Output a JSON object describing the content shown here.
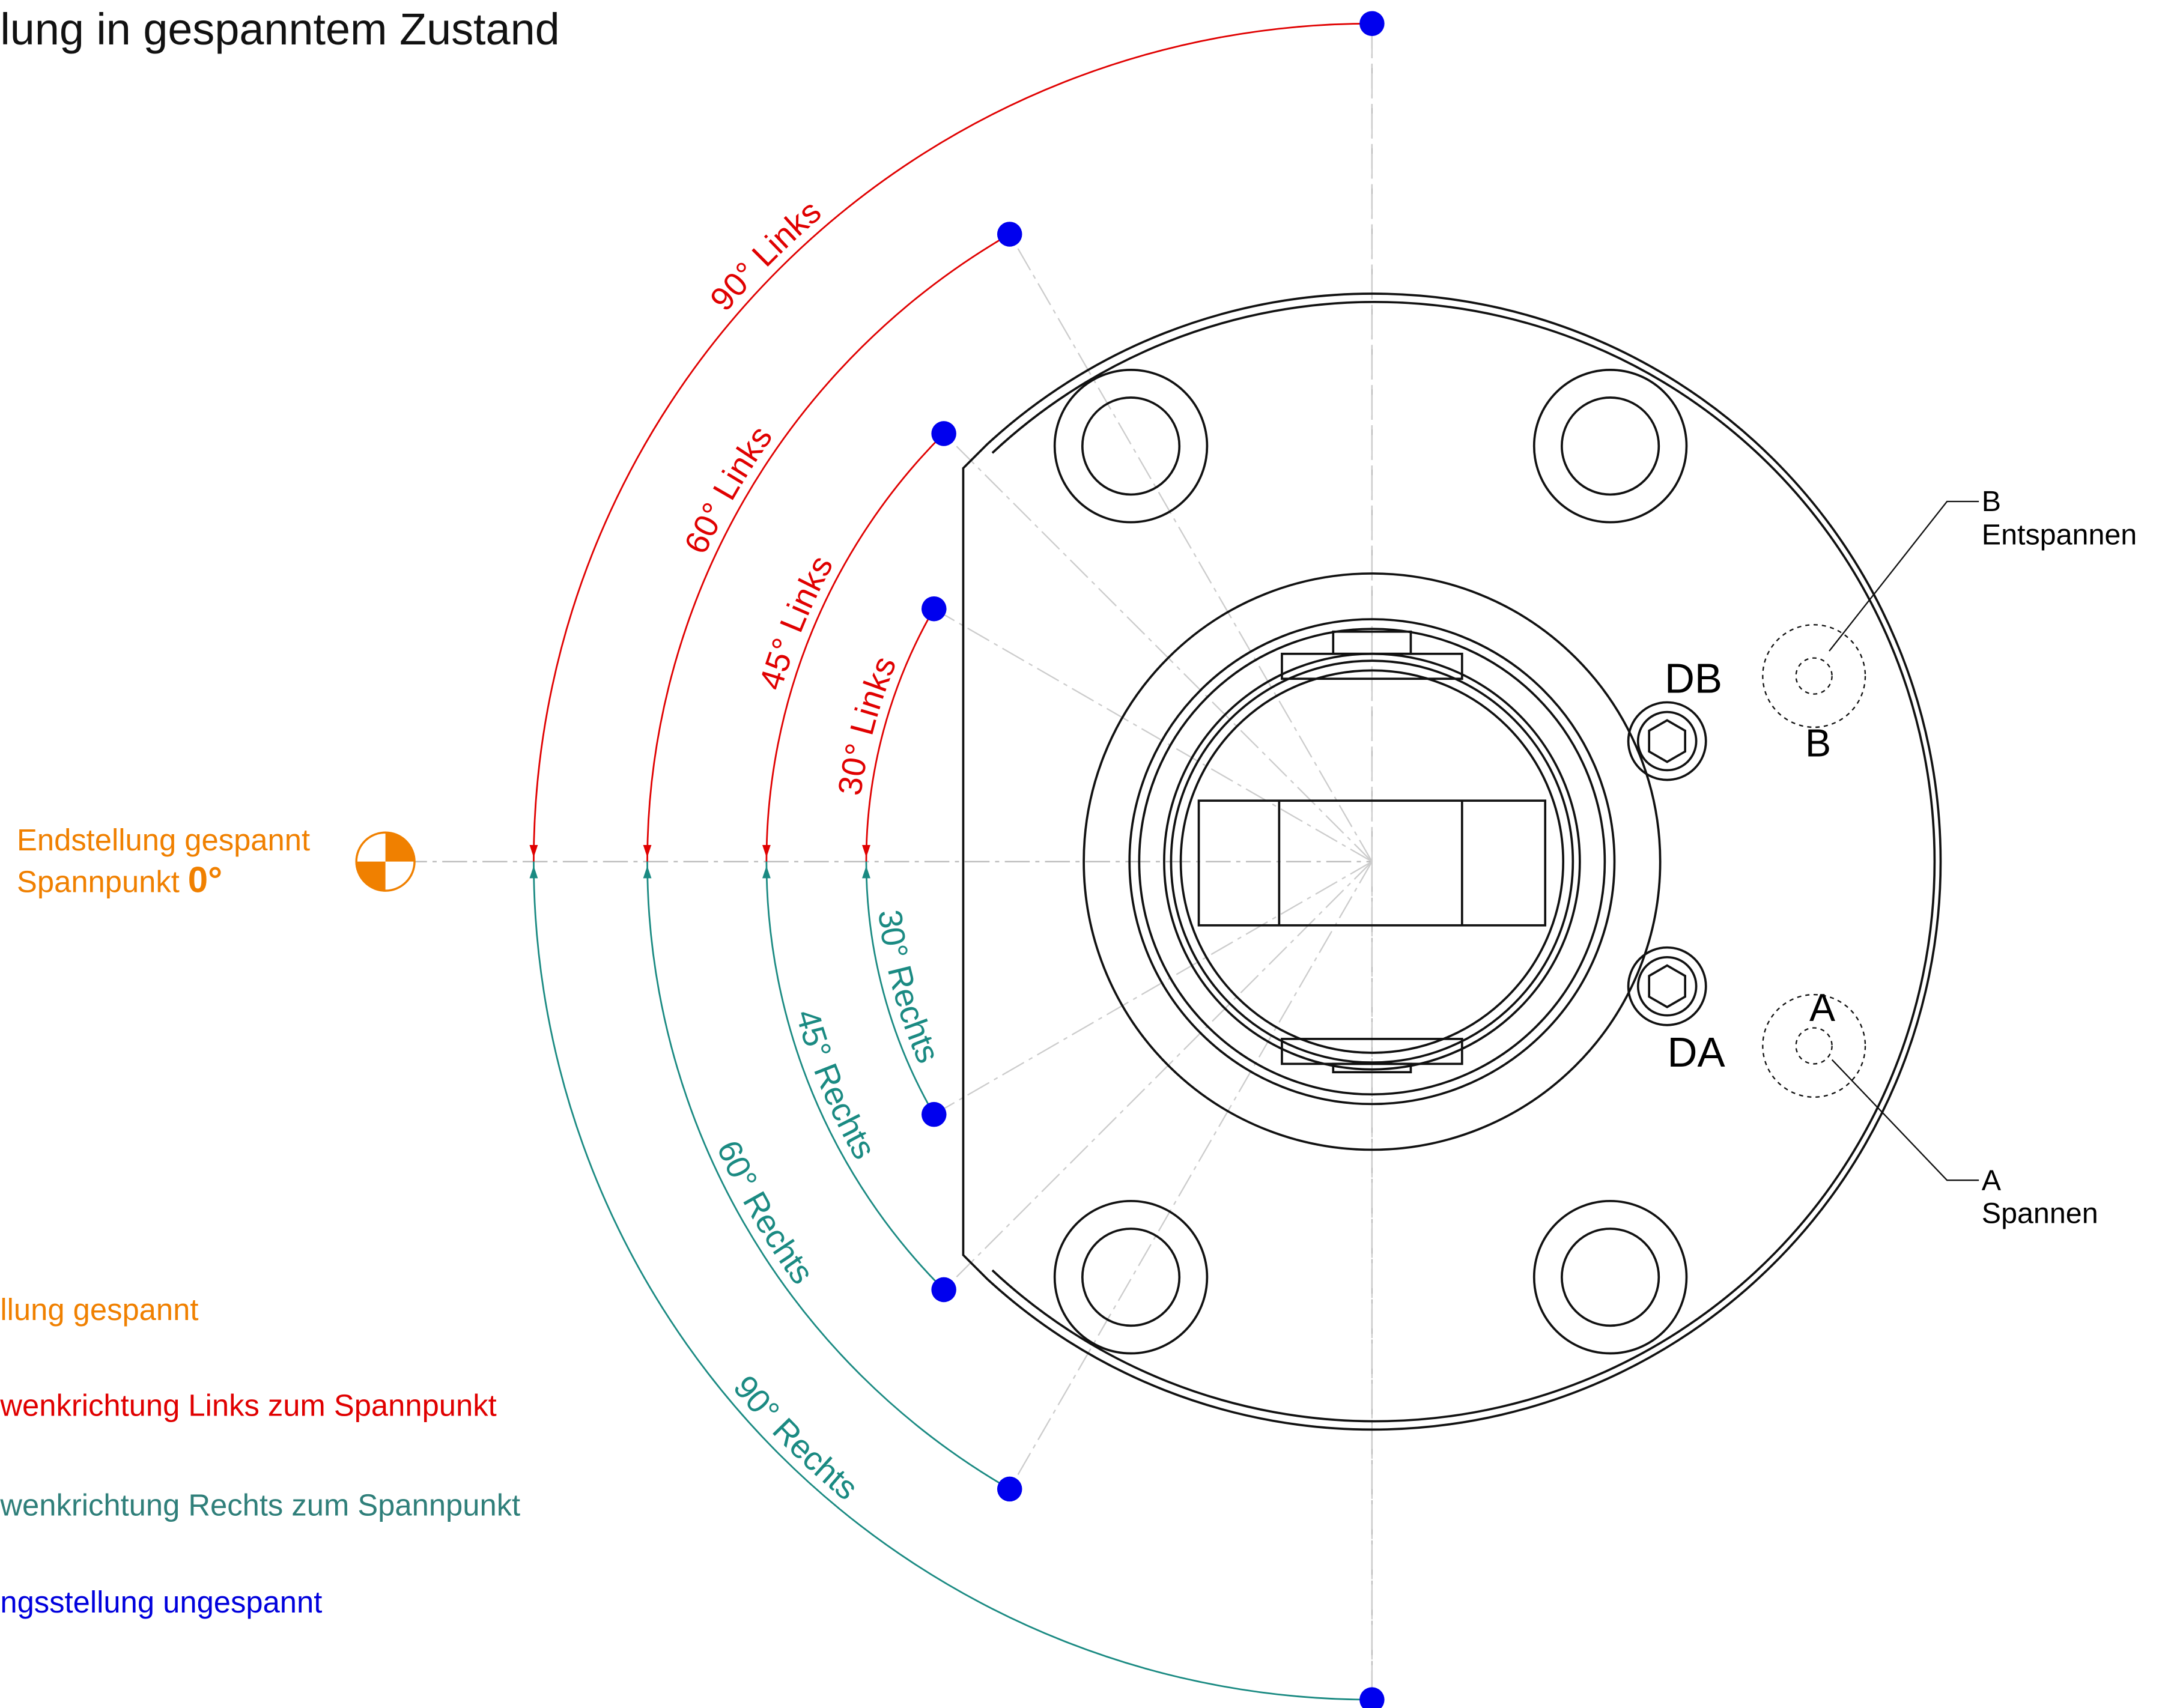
{
  "title": "lung in gespanntem Zustand",
  "end_position": {
    "line1": "Endstellung gespannt",
    "line2": "Spannpunkt",
    "angle": "0°"
  },
  "arcs_left": [
    "90° Links",
    "60° Links",
    "45° Links",
    "30° Links"
  ],
  "arcs_right": [
    "90° Rechts",
    "60° Rechts",
    "45° Rechts",
    "30° Rechts"
  ],
  "ports": {
    "DB": "DB",
    "DA": "DA",
    "B": "B",
    "A": "A"
  },
  "callouts": [
    {
      "port": "B",
      "label": "Entspannen"
    },
    {
      "port": "A",
      "label": "Spannen"
    }
  ],
  "legend": [
    "llung gespannt",
    "wenkrichtung Links zum Spannpunkt",
    "wenkrichtung Rechts zum Spannpunkt",
    "ngsstellung ungespannt"
  ]
}
